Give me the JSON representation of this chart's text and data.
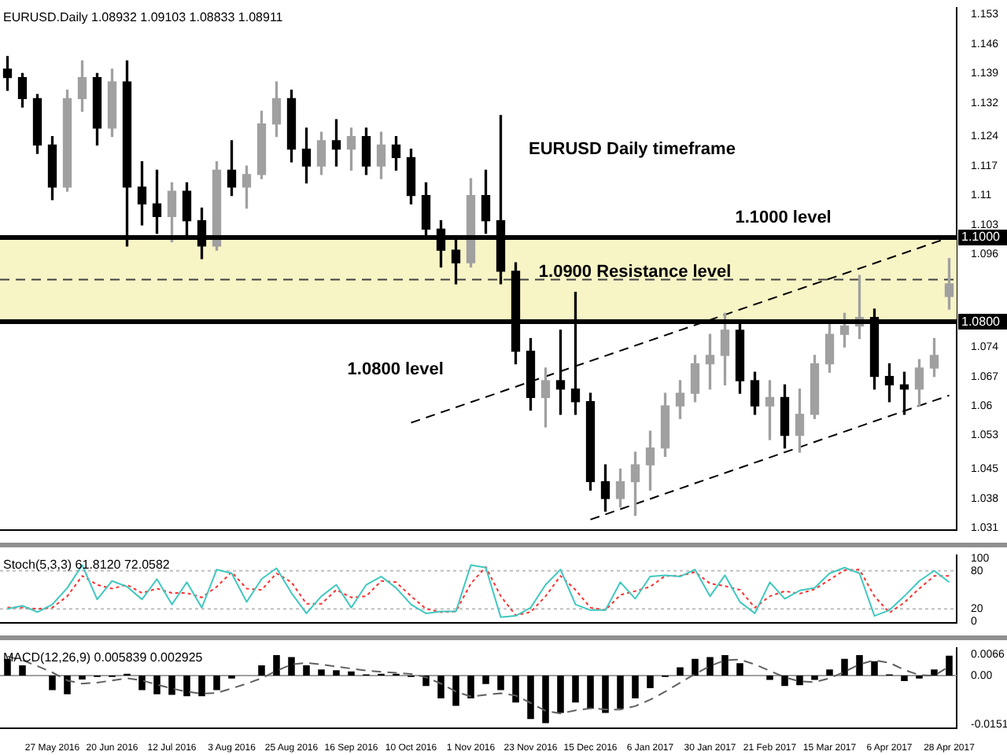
{
  "chart_data": [
    {
      "type": "candlestick",
      "title": "EURUSD.Daily 1.08932 1.09103 1.08833 1.08911",
      "categories": [
        null,
        null,
        null,
        null,
        null,
        null,
        null,
        null,
        null,
        null,
        null,
        null,
        null,
        null,
        null,
        null,
        null,
        null,
        null,
        null,
        null,
        null,
        null,
        null,
        null,
        null,
        null,
        null,
        null,
        null,
        null,
        null,
        null,
        null,
        null,
        null,
        null,
        null,
        null,
        null,
        null,
        null,
        null,
        null,
        null,
        null,
        null,
        null,
        null,
        null,
        null,
        null,
        null,
        null,
        null,
        null,
        null,
        null,
        null,
        null,
        null,
        null,
        null,
        null
      ],
      "series": [
        {
          "ohlc": [
            [
              1.14,
              1.143,
              1.135,
              1.138
            ],
            [
              1.138,
              1.139,
              1.131,
              1.133
            ],
            [
              1.133,
              1.134,
              1.12,
              1.122
            ],
            [
              1.122,
              1.124,
              1.109,
              1.112
            ],
            [
              1.112,
              1.135,
              1.111,
              1.133
            ],
            [
              1.133,
              1.142,
              1.13,
              1.138
            ],
            [
              1.138,
              1.139,
              1.122,
              1.126
            ],
            [
              1.126,
              1.14,
              1.124,
              1.137
            ],
            [
              1.137,
              1.142,
              1.098,
              1.112
            ],
            [
              1.112,
              1.118,
              1.103,
              1.108
            ],
            [
              1.108,
              1.116,
              1.101,
              1.105
            ],
            [
              1.105,
              1.113,
              1.099,
              1.111
            ],
            [
              1.111,
              1.113,
              1.1,
              1.104
            ],
            [
              1.104,
              1.107,
              1.095,
              1.098
            ],
            [
              1.098,
              1.118,
              1.097,
              1.116
            ],
            [
              1.116,
              1.123,
              1.11,
              1.112
            ],
            [
              1.112,
              1.117,
              1.107,
              1.115
            ],
            [
              1.115,
              1.13,
              1.114,
              1.127
            ],
            [
              1.127,
              1.137,
              1.124,
              1.133
            ],
            [
              1.133,
              1.135,
              1.118,
              1.121
            ],
            [
              1.121,
              1.126,
              1.113,
              1.117
            ],
            [
              1.117,
              1.125,
              1.115,
              1.123
            ],
            [
              1.123,
              1.128,
              1.117,
              1.121
            ],
            [
              1.121,
              1.126,
              1.116,
              1.124
            ],
            [
              1.124,
              1.126,
              1.115,
              1.117
            ],
            [
              1.117,
              1.125,
              1.114,
              1.122
            ],
            [
              1.122,
              1.124,
              1.116,
              1.119
            ],
            [
              1.119,
              1.121,
              1.108,
              1.11
            ],
            [
              1.11,
              1.113,
              1.1,
              1.102
            ],
            [
              1.102,
              1.104,
              1.093,
              1.097
            ],
            [
              1.097,
              1.1,
              1.089,
              1.094
            ],
            [
              1.094,
              1.114,
              1.093,
              1.11
            ],
            [
              1.11,
              1.116,
              1.101,
              1.104
            ],
            [
              1.104,
              1.129,
              1.089,
              1.092
            ],
            [
              1.092,
              1.094,
              1.07,
              1.073
            ],
            [
              1.073,
              1.076,
              1.059,
              1.062
            ],
            [
              1.062,
              1.069,
              1.055,
              1.066
            ],
            [
              1.066,
              1.078,
              1.058,
              1.064
            ],
            [
              1.064,
              1.087,
              1.058,
              1.061
            ],
            [
              1.061,
              1.063,
              1.04,
              1.042
            ],
            [
              1.042,
              1.046,
              1.035,
              1.038
            ],
            [
              1.038,
              1.045,
              1.036,
              1.042
            ],
            [
              1.042,
              1.049,
              1.034,
              1.046
            ],
            [
              1.046,
              1.054,
              1.04,
              1.05
            ],
            [
              1.05,
              1.063,
              1.048,
              1.06
            ],
            [
              1.06,
              1.066,
              1.057,
              1.063
            ],
            [
              1.063,
              1.072,
              1.061,
              1.07
            ],
            [
              1.07,
              1.077,
              1.064,
              1.072
            ],
            [
              1.072,
              1.082,
              1.065,
              1.078
            ],
            [
              1.078,
              1.08,
              1.063,
              1.066
            ],
            [
              1.066,
              1.068,
              1.058,
              1.06
            ],
            [
              1.06,
              1.066,
              1.052,
              1.062
            ],
            [
              1.062,
              1.065,
              1.05,
              1.053
            ],
            [
              1.053,
              1.064,
              1.049,
              1.058
            ],
            [
              1.058,
              1.072,
              1.057,
              1.07
            ],
            [
              1.07,
              1.08,
              1.068,
              1.077
            ],
            [
              1.077,
              1.082,
              1.074,
              1.079
            ],
            [
              1.079,
              1.091,
              1.076,
              1.081
            ],
            [
              1.081,
              1.083,
              1.064,
              1.067
            ],
            [
              1.067,
              1.07,
              1.061,
              1.065
            ],
            [
              1.065,
              1.068,
              1.058,
              1.064
            ],
            [
              1.064,
              1.071,
              1.06,
              1.069
            ],
            [
              1.069,
              1.076,
              1.067,
              1.072
            ],
            [
              1.086,
              1.095,
              1.083,
              1.089
            ]
          ],
          "colors": [
            "#000000",
            "#000000",
            "#000000",
            "#000000",
            "#a0a0a0",
            "#a0a0a0",
            "#000000",
            "#a0a0a0",
            "#000000",
            "#000000",
            "#000000",
            "#a0a0a0",
            "#000000",
            "#000000",
            "#a0a0a0",
            "#000000",
            "#a0a0a0",
            "#a0a0a0",
            "#a0a0a0",
            "#000000",
            "#000000",
            "#a0a0a0",
            "#000000",
            "#a0a0a0",
            "#000000",
            "#a0a0a0",
            "#000000",
            "#000000",
            "#000000",
            "#000000",
            "#000000",
            "#a0a0a0",
            "#000000",
            "#000000",
            "#000000",
            "#000000",
            "#a0a0a0",
            "#000000",
            "#000000",
            "#000000",
            "#000000",
            "#a0a0a0",
            "#a0a0a0",
            "#a0a0a0",
            "#a0a0a0",
            "#a0a0a0",
            "#a0a0a0",
            "#a0a0a0",
            "#a0a0a0",
            "#000000",
            "#000000",
            "#a0a0a0",
            "#000000",
            "#a0a0a0",
            "#a0a0a0",
            "#a0a0a0",
            "#a0a0a0",
            "#a0a0a0",
            "#000000",
            "#000000",
            "#000000",
            "#a0a0a0",
            "#a0a0a0",
            "#a0a0a0"
          ]
        },
        {
          "type": "line",
          "color": "#000000",
          "line_style": "dashed",
          "values": [
            null,
            null,
            null,
            null,
            null,
            null,
            null,
            null,
            null,
            null,
            null,
            null,
            null,
            null,
            null,
            null,
            null,
            null,
            null,
            null,
            null,
            null,
            null,
            null,
            null,
            null,
            null,
            1.056,
            null,
            null,
            null,
            null,
            null,
            null,
            null,
            null,
            null,
            null,
            null,
            null,
            null,
            null,
            null,
            null,
            null,
            null,
            null,
            null,
            null,
            null,
            null,
            null,
            null,
            null,
            null,
            null,
            null,
            null,
            null,
            null,
            null,
            null,
            null,
            1.1
          ]
        },
        {
          "type": "line",
          "color": "#000000",
          "line_style": "dashed",
          "values": [
            null,
            null,
            null,
            null,
            null,
            null,
            null,
            null,
            null,
            null,
            null,
            null,
            null,
            null,
            null,
            null,
            null,
            null,
            null,
            null,
            null,
            null,
            null,
            null,
            null,
            null,
            null,
            null,
            null,
            null,
            null,
            null,
            null,
            null,
            null,
            null,
            null,
            null,
            null,
            1.033,
            null,
            null,
            null,
            null,
            null,
            null,
            null,
            null,
            null,
            null,
            null,
            null,
            null,
            null,
            null,
            null,
            null,
            null,
            null,
            null,
            null,
            null,
            null,
            1.0625
          ]
        }
      ],
      "ylim": [
        1.0305,
        1.1545
      ],
      "yticks": [
        1.031,
        1.038,
        1.045,
        1.053,
        1.06,
        1.067,
        1.074,
        1.096,
        1.103,
        1.11,
        1.117,
        1.124,
        1.132,
        1.139,
        1.146,
        1.153
      ],
      "bands": [
        {
          "axis": "y",
          "from": 1.08,
          "to": 1.1,
          "color": "#f7f4c6"
        }
      ],
      "ref_lines": [
        {
          "axis": "y",
          "value": 1.1,
          "label": "1.1000",
          "color": "#000000",
          "line_style": "solid"
        },
        {
          "axis": "y",
          "value": 1.08,
          "label": "1.0800",
          "color": "#000000",
          "line_style": "solid"
        },
        {
          "axis": "y",
          "value": 1.09,
          "color": "#404040",
          "line_style": "dashed"
        }
      ],
      "annotations": [
        "EURUSD Daily timeframe",
        "1.1000 level",
        "1.0900 Resistance level",
        "1.0800 level"
      ],
      "tick_labels": "y"
    },
    {
      "type": "line",
      "title": "Stoch(5,3,3) 61.8120 72.0582",
      "categories": [
        null,
        null,
        null,
        null,
        null,
        null,
        null,
        null,
        null,
        null,
        null,
        null,
        null,
        null,
        null,
        null,
        null,
        null,
        null,
        null,
        null,
        null,
        null,
        null,
        null,
        null,
        null,
        null,
        null,
        null,
        null,
        null,
        null,
        null,
        null,
        null,
        null,
        null,
        null,
        null,
        null,
        null,
        null,
        null,
        null,
        null,
        null,
        null,
        null,
        null,
        null,
        null,
        null,
        null,
        null,
        null,
        null,
        null,
        null,
        null,
        null,
        null,
        null,
        null
      ],
      "series": [
        {
          "color": "#40c8c0",
          "values": [
            20,
            25,
            15,
            27,
            53,
            89,
            35,
            64,
            55,
            35,
            67,
            27,
            62,
            22,
            82,
            76,
            31,
            67,
            84,
            45,
            13,
            40,
            58,
            22,
            58,
            71,
            53,
            27,
            13,
            16,
            16,
            89,
            85,
            7,
            9,
            22,
            58,
            82,
            27,
            18,
            18,
            62,
            36,
            71,
            73,
            71,
            82,
            40,
            73,
            31,
            13,
            62,
            36,
            49,
            53,
            76,
            85,
            76,
            9,
            18,
            40,
            64,
            80,
            62
          ]
        },
        {
          "color": "#ff3030",
          "line_style": "dotted",
          "values": [
            22,
            22,
            20,
            22,
            40,
            72,
            58,
            52,
            58,
            45,
            52,
            45,
            45,
            38,
            55,
            78,
            52,
            50,
            76,
            62,
            28,
            28,
            50,
            38,
            40,
            64,
            62,
            40,
            20,
            15,
            16,
            60,
            86,
            40,
            10,
            15,
            40,
            72,
            50,
            22,
            18,
            42,
            48,
            55,
            72,
            72,
            78,
            60,
            56,
            50,
            22,
            40,
            48,
            44,
            51,
            66,
            81,
            82,
            40,
            14,
            30,
            52,
            72,
            72
          ]
        }
      ],
      "ylim": [
        -2,
        104
      ],
      "yticks": [
        0,
        20,
        80,
        100
      ],
      "ref_lines": [
        {
          "axis": "y",
          "value": 80,
          "color": "#c0c0c0",
          "line_style": "dotted"
        },
        {
          "axis": "y",
          "value": 20,
          "color": "#c0c0c0",
          "line_style": "dotted"
        }
      ],
      "tick_labels": "y"
    },
    {
      "type": "bar",
      "title": "MACD(12,26,9) 0.005839 0.002925",
      "categories": [
        null,
        null,
        null,
        "27 May 2016",
        null,
        null,
        null,
        "20 Jun 2016",
        null,
        null,
        null,
        "12 Jul 2016",
        null,
        null,
        null,
        "3 Aug 2016",
        null,
        null,
        null,
        "25 Aug 2016",
        null,
        null,
        null,
        "16 Sep 2016",
        null,
        null,
        null,
        "10 Oct 2016",
        null,
        null,
        null,
        "1 Nov 2016",
        null,
        null,
        null,
        "23 Nov 2016",
        null,
        null,
        null,
        "15 Dec 2016",
        null,
        null,
        null,
        "6 Jan 2017",
        null,
        null,
        null,
        "30 Jan 2017",
        null,
        null,
        null,
        "21 Feb 2017",
        null,
        null,
        null,
        "15 Mar 2017",
        null,
        null,
        null,
        "6 Apr 2017",
        null,
        null,
        null,
        "28 Apr 2017"
      ],
      "series": [
        {
          "color": "#000000",
          "values": [
            0.0052,
            0.0032,
            0,
            -0.0045,
            -0.0058,
            -0.0012,
            -0.0004,
            -0.0004,
            0.0006,
            -0.0045,
            -0.0058,
            -0.006,
            -0.0064,
            -0.0064,
            -0.0045,
            -0.0009,
            0,
            0.0032,
            0.0064,
            0.0058,
            0.0032,
            0.0019,
            0.0017,
            0.0013,
            0.0004,
            0.0006,
            0.0006,
            -0.0004,
            -0.0032,
            -0.0071,
            -0.0094,
            -0.0071,
            -0.0026,
            -0.0045,
            -0.0084,
            -0.0135,
            -0.0148,
            -0.0116,
            -0.0084,
            -0.0103,
            -0.0116,
            -0.0103,
            -0.0071,
            -0.0039,
            -0.0004,
            0.0026,
            0.0052,
            0.0058,
            0.0064,
            0.0039,
            0,
            -0.0013,
            -0.0032,
            -0.003,
            -0.0013,
            0.0019,
            0.0052,
            0.0064,
            0.0045,
            0.0004,
            -0.0017,
            -0.0009,
            0.0019,
            0.0062
          ]
        },
        {
          "type": "line",
          "color": "#606060",
          "line_style": "dashed",
          "values": [
            0.006,
            0.0048,
            0.003,
            0.001,
            -0.0015,
            -0.0025,
            -0.0022,
            -0.0015,
            -0.0008,
            -0.0015,
            -0.0028,
            -0.004,
            -0.005,
            -0.0056,
            -0.0054,
            -0.004,
            -0.0025,
            -0.0008,
            0.0015,
            0.0035,
            0.004,
            0.0035,
            0.0028,
            0.0022,
            0.0016,
            0.0012,
            0.0009,
            0.0005,
            -0.0005,
            -0.0025,
            -0.005,
            -0.0065,
            -0.006,
            -0.0055,
            -0.0062,
            -0.0085,
            -0.011,
            -0.0118,
            -0.0108,
            -0.0102,
            -0.0105,
            -0.0106,
            -0.0095,
            -0.0075,
            -0.005,
            -0.0022,
            0.0005,
            0.003,
            0.0048,
            0.005,
            0.0035,
            0.0015,
            -0.0005,
            -0.0018,
            -0.002,
            -0.0008,
            0.0012,
            0.0035,
            0.0048,
            0.004,
            0.0018,
            0.0002,
            0,
            0.0029
          ]
        }
      ],
      "ylim": [
        -0.0163,
        0.0085
      ],
      "yticks": [
        -0.0151,
        {
          "value": 0,
          "label": "0.00"
        },
        0.0066
      ],
      "ref_lines": [
        {
          "axis": "y",
          "value": 0,
          "color": "#a0a0a0",
          "line_style": "solid"
        }
      ]
    }
  ]
}
